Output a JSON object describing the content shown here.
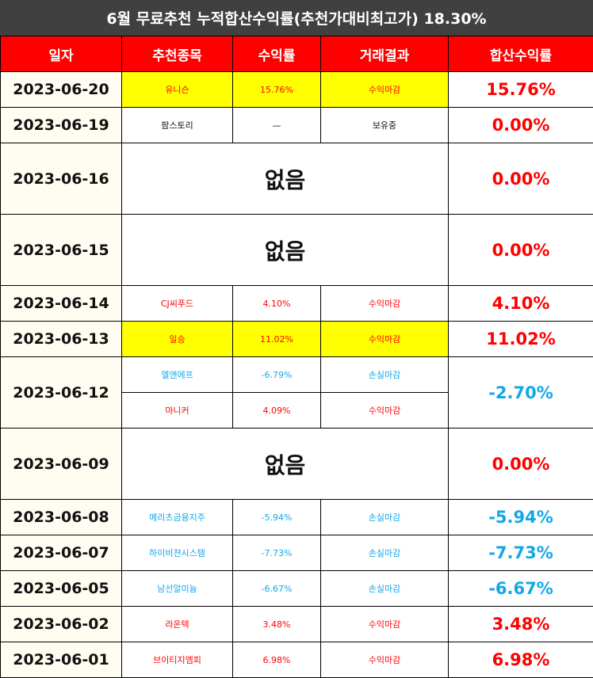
{
  "title": "6월 무료추천 누적합산수익률(추천가대비최고가) 18.30%",
  "headers": [
    "일자",
    "추천종목",
    "수익률",
    "거래결과",
    "합산수익률"
  ],
  "colors": {
    "header_bg": "#ff0000",
    "title_bg": "#404040",
    "highlight": "#ffff00",
    "profit": "#ff0000",
    "loss": "#13a7e8"
  },
  "rows": [
    {
      "date": "2023-06-20",
      "total": "15.76%",
      "total_color": "red",
      "items": [
        {
          "stock": "유니슨",
          "rate": "15.76%",
          "result": "수익마감",
          "color": "red",
          "highlight": true
        }
      ]
    },
    {
      "date": "2023-06-19",
      "total": "0.00%",
      "total_color": "red",
      "items": [
        {
          "stock": "팜스토리",
          "rate": "—",
          "result": "보유중",
          "color": "black",
          "highlight": false
        }
      ]
    },
    {
      "date": "2023-06-16",
      "total": "0.00%",
      "total_color": "red",
      "none": "없음"
    },
    {
      "date": "2023-06-15",
      "total": "0.00%",
      "total_color": "red",
      "none": "없음"
    },
    {
      "date": "2023-06-14",
      "total": "4.10%",
      "total_color": "red",
      "items": [
        {
          "stock": "CJ씨푸드",
          "rate": "4.10%",
          "result": "수익마감",
          "color": "red",
          "highlight": false
        }
      ]
    },
    {
      "date": "2023-06-13",
      "total": "11.02%",
      "total_color": "red",
      "items": [
        {
          "stock": "일승",
          "rate": "11.02%",
          "result": "수익마감",
          "color": "red",
          "highlight": true
        }
      ]
    },
    {
      "date": "2023-06-12",
      "total": "-2.70%",
      "total_color": "blue",
      "items": [
        {
          "stock": "엘앤에프",
          "rate": "-6.79%",
          "result": "손실마감",
          "color": "blue",
          "highlight": false
        },
        {
          "stock": "마니커",
          "rate": "4.09%",
          "result": "수익마감",
          "color": "red",
          "highlight": false
        }
      ]
    },
    {
      "date": "2023-06-09",
      "total": "0.00%",
      "total_color": "red",
      "none": "없음"
    },
    {
      "date": "2023-06-08",
      "total": "-5.94%",
      "total_color": "blue",
      "items": [
        {
          "stock": "메리츠금융지주",
          "rate": "-5.94%",
          "result": "손실마감",
          "color": "blue",
          "highlight": false
        }
      ]
    },
    {
      "date": "2023-06-07",
      "total": "-7.73%",
      "total_color": "blue",
      "items": [
        {
          "stock": "하이비젼시스템",
          "rate": "-7.73%",
          "result": "손실마감",
          "color": "blue",
          "highlight": false
        }
      ]
    },
    {
      "date": "2023-06-05",
      "total": "-6.67%",
      "total_color": "blue",
      "items": [
        {
          "stock": "남선알미늄",
          "rate": "-6.67%",
          "result": "손실마감",
          "color": "blue",
          "highlight": false
        }
      ]
    },
    {
      "date": "2023-06-02",
      "total": "3.48%",
      "total_color": "red",
      "items": [
        {
          "stock": "라온텍",
          "rate": "3.48%",
          "result": "수익마감",
          "color": "red",
          "highlight": false
        }
      ]
    },
    {
      "date": "2023-06-01",
      "total": "6.98%",
      "total_color": "red",
      "items": [
        {
          "stock": "브이티지엠피",
          "rate": "6.98%",
          "result": "수익마감",
          "color": "red",
          "highlight": false
        }
      ]
    }
  ]
}
